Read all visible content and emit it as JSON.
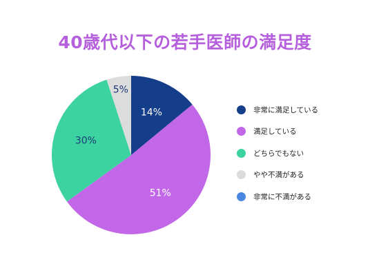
{
  "chart_data": {
    "type": "pie",
    "title": "40歳代以下の若手医師の満足度",
    "title_color": "#b65fdc",
    "categories": [
      "非常に満足している",
      "満足している",
      "どちらでもない",
      "やや不満がある",
      "非常に不満がある"
    ],
    "values": [
      14,
      51,
      30,
      5,
      0
    ],
    "data_labels": [
      "14%",
      "51%",
      "30%",
      "5%",
      ""
    ],
    "colors": [
      "#143d8a",
      "#c267e8",
      "#3dd3a0",
      "#dcdcdc",
      "#4a87e0"
    ],
    "label_colors": [
      "#ffffff",
      "#ffffff",
      "#1a3a7a",
      "#1a3a7a",
      "#ffffff"
    ],
    "start_angle_deg": 0,
    "direction": "clockwise",
    "legend_position": "right"
  }
}
